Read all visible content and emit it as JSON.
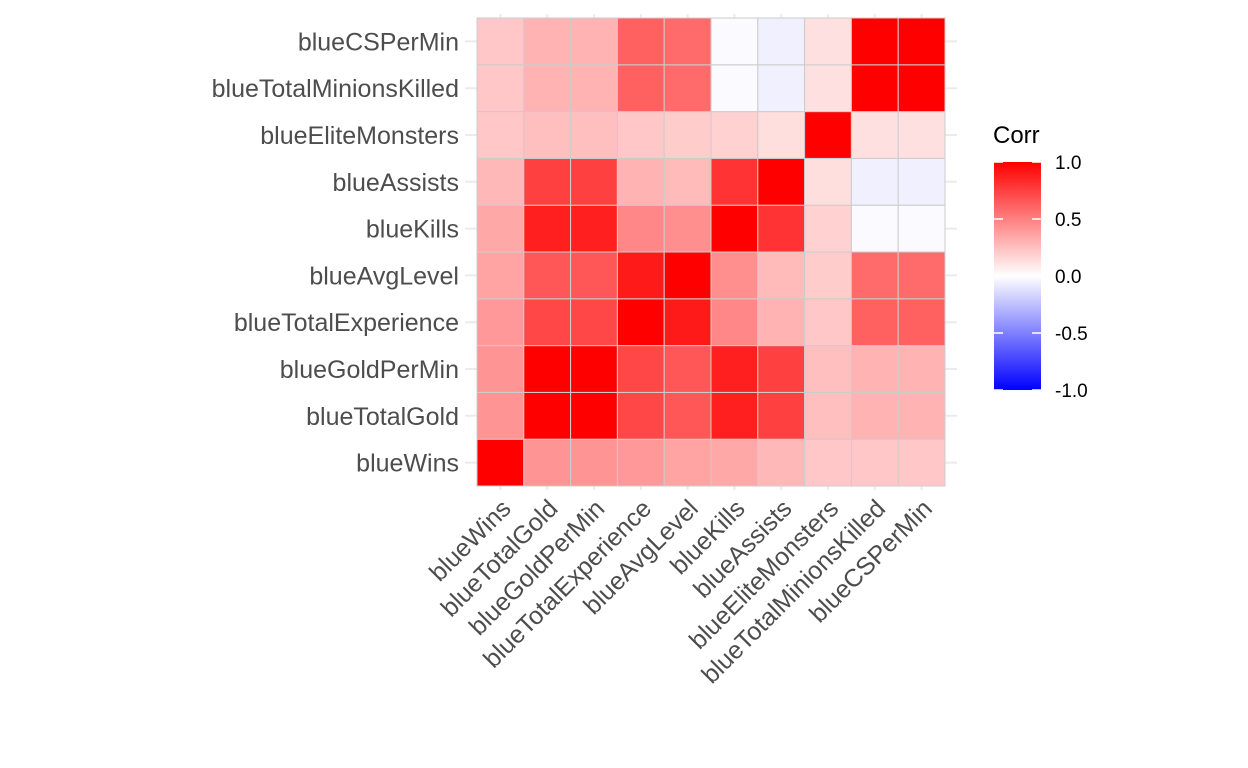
{
  "chart_data": {
    "type": "heatmap",
    "variables": [
      "blueWins",
      "blueTotalGold",
      "blueGoldPerMin",
      "blueTotalExperience",
      "blueAvgLevel",
      "blueKills",
      "blueAssists",
      "blueEliteMonsters",
      "blueTotalMinionsKilled",
      "blueCSPerMin"
    ],
    "matrix": [
      [
        1.0,
        0.42,
        0.42,
        0.4,
        0.36,
        0.34,
        0.28,
        0.22,
        0.22,
        0.22
      ],
      [
        0.42,
        1.0,
        1.0,
        0.72,
        0.66,
        0.88,
        0.75,
        0.25,
        0.3,
        0.3
      ],
      [
        0.42,
        1.0,
        1.0,
        0.72,
        0.66,
        0.88,
        0.75,
        0.25,
        0.3,
        0.3
      ],
      [
        0.4,
        0.72,
        0.72,
        1.0,
        0.9,
        0.47,
        0.3,
        0.22,
        0.62,
        0.62
      ],
      [
        0.36,
        0.66,
        0.66,
        0.9,
        1.0,
        0.44,
        0.27,
        0.2,
        0.58,
        0.58
      ],
      [
        0.34,
        0.88,
        0.88,
        0.47,
        0.44,
        1.0,
        0.8,
        0.18,
        -0.02,
        -0.02
      ],
      [
        0.28,
        0.75,
        0.75,
        0.3,
        0.27,
        0.8,
        1.0,
        0.13,
        -0.06,
        -0.06
      ],
      [
        0.22,
        0.25,
        0.25,
        0.22,
        0.2,
        0.18,
        0.13,
        1.0,
        0.12,
        0.12
      ],
      [
        0.22,
        0.3,
        0.3,
        0.62,
        0.58,
        -0.02,
        -0.06,
        0.12,
        1.0,
        1.0
      ],
      [
        0.22,
        0.3,
        0.3,
        0.62,
        0.58,
        -0.02,
        -0.06,
        0.12,
        1.0,
        1.0
      ]
    ],
    "legend": {
      "title": "Corr",
      "ticks": [
        "1.0",
        "0.5",
        "0.0",
        "-0.5",
        "-1.0"
      ],
      "tick_values": [
        1.0,
        0.5,
        0.0,
        -0.5,
        -1.0
      ],
      "placement": "right",
      "colors": {
        "low": "#0000ff",
        "mid": "#ffffff",
        "high": "#ff0000"
      }
    },
    "value_range": [
      -1,
      1
    ],
    "grid": true,
    "colors": {
      "tile_border": "#cccccc",
      "gridline": "#ebebeb",
      "tick_text": "#4d4d4d"
    }
  }
}
